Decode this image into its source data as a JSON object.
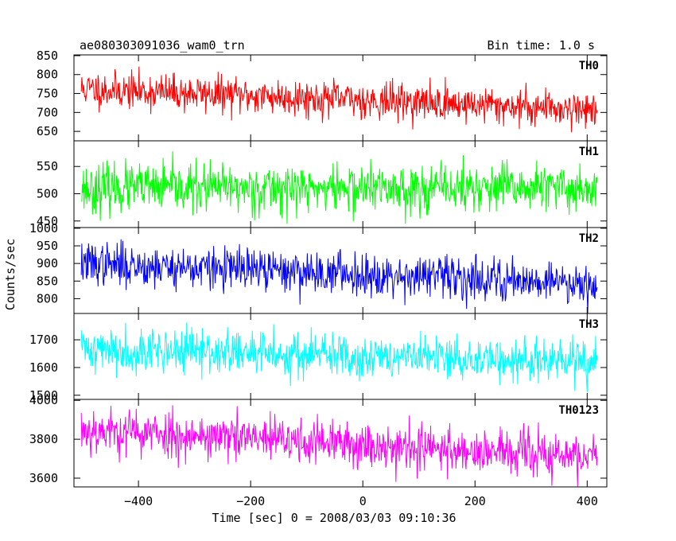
{
  "chart_data": {
    "type": "line",
    "title_left": "ae080303091036_wam0_trn",
    "title_right": "Bin time: 1.0 s",
    "xlabel": "Time [sec] 0 = 2008/03/03 09:10:36",
    "ylabel": "Counts/sec",
    "xlim": [
      -515,
      435
    ],
    "x_ticks": [
      -400,
      -200,
      0,
      200,
      400
    ],
    "x_range": [
      -502,
      418
    ],
    "bin_time_s": 1.0,
    "panels": [
      {
        "name": "TH0",
        "color": "#ff0000",
        "ylim": [
          625,
          852
        ],
        "y_ticks": [
          650,
          700,
          750,
          800,
          850
        ],
        "trend": {
          "start": 762,
          "end": 708
        },
        "scatter_sd": 24,
        "seed": 11
      },
      {
        "name": "TH1",
        "color": "#00ff00",
        "ylim": [
          438,
          597
        ],
        "y_ticks": [
          450,
          500,
          550
        ],
        "trend": {
          "start": 510,
          "end": 510
        },
        "scatter_sd": 22,
        "seed": 23
      },
      {
        "name": "TH2",
        "color": "#0000ff",
        "ylim": [
          758,
          1002
        ],
        "y_ticks": [
          800,
          850,
          900,
          950,
          1000
        ],
        "trend": {
          "start": 900,
          "end": 845
        },
        "scatter_sd": 30,
        "seed": 37
      },
      {
        "name": "TH3",
        "color": "#00ffff",
        "ylim": [
          1485,
          1795
        ],
        "y_ticks": [
          1500,
          1600,
          1700
        ],
        "trend": {
          "start": 1668,
          "end": 1618
        },
        "scatter_sd": 40,
        "seed": 41
      },
      {
        "name": "TH0123",
        "color": "#ff00ff",
        "ylim": [
          3555,
          4005
        ],
        "y_ticks": [
          3600,
          3800,
          4000
        ],
        "trend": {
          "start": 3850,
          "end": 3705
        },
        "scatter_sd": 60,
        "seed": 53
      }
    ]
  }
}
